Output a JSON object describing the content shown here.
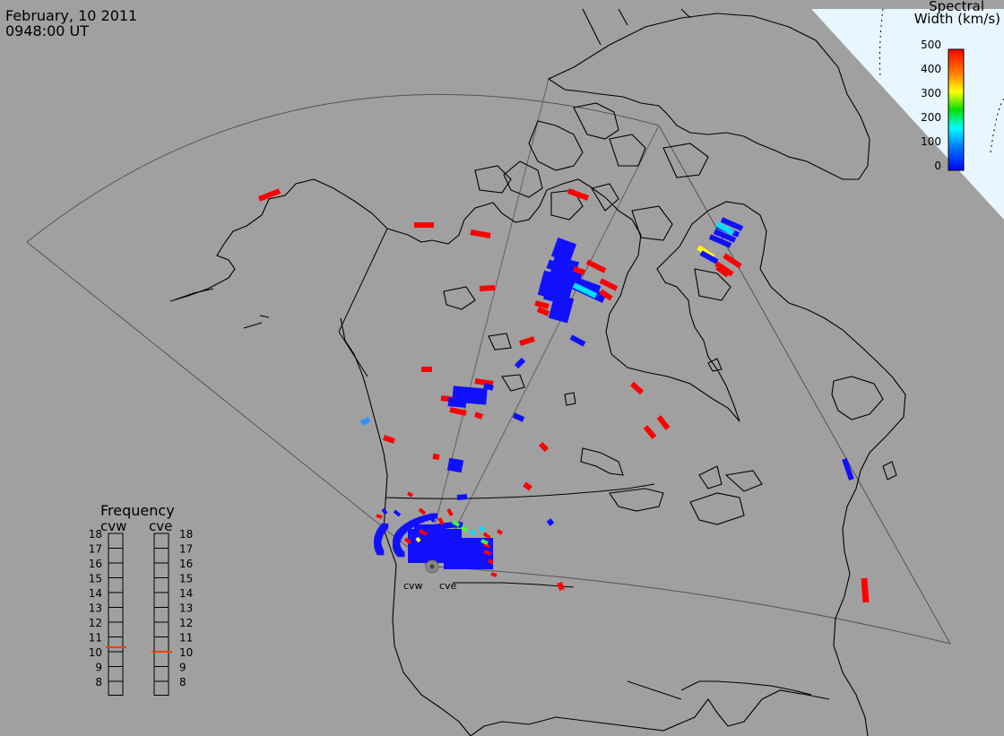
{
  "header": {
    "date": "February, 10 2011",
    "time": "0948:00 UT"
  },
  "colorbar": {
    "title_line1": "Spectral",
    "title_line2": "Width (km/s)",
    "ticks": [
      "500",
      "400",
      "300",
      "200",
      "100",
      "0"
    ],
    "colors": [
      "#ff0000",
      "#ff8000",
      "#ffff00",
      "#00e000",
      "#00ffff",
      "#0080ff",
      "#0000ff"
    ]
  },
  "frequency": {
    "title": "Frequency",
    "left_label": "cvw",
    "right_label": "cve",
    "scale": [
      "18",
      "17",
      "16",
      "15",
      "14",
      "13",
      "12",
      "11",
      "10",
      "9",
      "8"
    ],
    "cvw_value": 10.8,
    "cve_value": 10.5,
    "marker_color": "#ff4000"
  },
  "radars": {
    "west": "cvw",
    "east": "cve"
  },
  "scatter_colors": {
    "red": "#ff0000",
    "blue": "#1010ff",
    "cyan": "#00e0ff",
    "light_blue": "#3090ff",
    "yellow": "#ffff00",
    "green": "#40ff40"
  }
}
